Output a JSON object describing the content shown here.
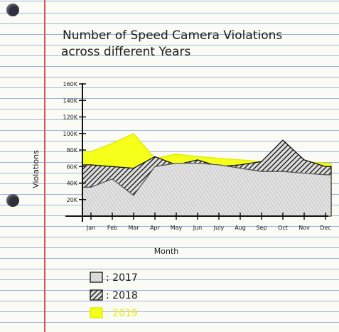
{
  "chart_data": {
    "type": "area",
    "title_line1": "Number of Speed Camera Violations",
    "title_line2": "across different Years",
    "xlabel": "Month",
    "ylabel": "Violations",
    "categories": [
      "Jan",
      "Feb",
      "Mar",
      "Apr",
      "May",
      "Jun",
      "July",
      "Aug",
      "Sep",
      "Oct",
      "Nov",
      "Dec"
    ],
    "yticks": [
      "20K",
      "40K",
      "60K",
      "80K",
      "100K",
      "120K",
      "140K",
      "160K"
    ],
    "ylim": [
      0,
      160000
    ],
    "series": [
      {
        "name": "2019",
        "color": "#f4ff1a",
        "values": [
          78000,
          88000,
          100000,
          70000,
          75000,
          72000,
          70000,
          68000,
          66000,
          65000,
          66000,
          64000
        ]
      },
      {
        "name": "2018",
        "color": "#1e1e1e",
        "values": [
          62000,
          60000,
          58000,
          72000,
          62000,
          68000,
          60000,
          62000,
          66000,
          92000,
          68000,
          60000
        ]
      },
      {
        "name": "2017",
        "color": "#c9c9c9",
        "values": [
          35000,
          45000,
          25000,
          60000,
          64000,
          64000,
          62000,
          58000,
          54000,
          54000,
          52000,
          50000
        ]
      }
    ],
    "legend": [
      {
        "label": ": 2017",
        "color": "#c9c9c9",
        "text_color": "#1b1b1b"
      },
      {
        "label": ": 2018",
        "color": "#1e1e1e",
        "text_color": "#1b1b1b"
      },
      {
        "label": ": 2019",
        "color": "#f4ff1a",
        "text_color": "#e8f000"
      }
    ],
    "legend_placement": "bottom-left",
    "grid": false
  }
}
